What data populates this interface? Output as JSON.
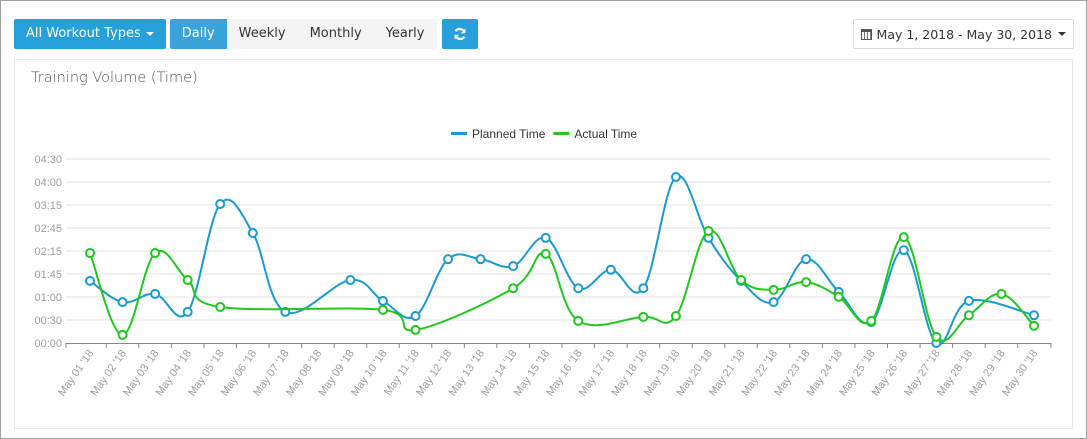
{
  "toolbar": {
    "workout_filter_label": "All Workout Types",
    "periods": [
      {
        "label": "Daily",
        "active": true
      },
      {
        "label": "Weekly",
        "active": false
      },
      {
        "label": "Monthly",
        "active": false
      },
      {
        "label": "Yearly",
        "active": false
      }
    ],
    "refresh_icon": "refresh-icon",
    "date_range_label": "May 1, 2018 - May 30, 2018",
    "date_range_icon": "calendar-icon"
  },
  "colors": {
    "primary_button": "#26a0da",
    "planned": "#1a9bcd",
    "actual": "#1ec81e",
    "grid": "#e0e0e0",
    "axis_text": "#9e9e9e"
  },
  "panel": {
    "title": "Training Volume (Time)"
  },
  "chart_data": {
    "type": "line",
    "title": "Training Volume (Time)",
    "xlabel": "",
    "ylabel": "",
    "ylim": [
      0,
      4.5
    ],
    "y_unit": "hours",
    "y_tick_labels": [
      "00:00",
      "00:30",
      "01:00",
      "01:45",
      "02:15",
      "02:45",
      "03:15",
      "04:00",
      "04:30"
    ],
    "y_tick_values": [
      0,
      0.5625,
      1.125,
      1.6875,
      2.25,
      2.8125,
      3.375,
      3.9375,
      4.5
    ],
    "grid": true,
    "legend_position": "top",
    "categories": [
      "May 01 '18",
      "May 02 '18",
      "May 03 '18",
      "May 04 '18",
      "May 05 '18",
      "May 06 '18",
      "May 07 '18",
      "May 08 '18",
      "May 09 '18",
      "May 10 '18",
      "May 11 '18",
      "May 12 '18",
      "May 13 '18",
      "May 14 '18",
      "May 15 '18",
      "May 16 '18",
      "May 17 '18",
      "May 18 '18",
      "May 19 '18",
      "May 20 '18",
      "May 21 '18",
      "May 22 '18",
      "May 23 '18",
      "May 24 '18",
      "May 25 '18",
      "May 26 '18",
      "May 27 '18",
      "May 28 '18",
      "May 29 '18",
      "May 30 '18"
    ],
    "series": [
      {
        "name": "Planned Time",
        "color": "#1a9bcd",
        "values": [
          1.52,
          1.0,
          1.2,
          0.76,
          3.4,
          2.69,
          0.76,
          null,
          1.54,
          1.03,
          0.66,
          2.05,
          2.05,
          1.88,
          2.57,
          1.34,
          1.79,
          1.34,
          4.06,
          2.57,
          1.52,
          1.0,
          2.05,
          1.25,
          0.51,
          2.27,
          0.0,
          1.03,
          null,
          0.68
        ]
      },
      {
        "name": "Actual Time",
        "color": "#1ec81e",
        "values": [
          2.2,
          0.2,
          2.2,
          1.54,
          0.88,
          null,
          null,
          null,
          null,
          0.81,
          0.32,
          null,
          null,
          1.34,
          2.18,
          0.54,
          null,
          0.64,
          0.66,
          2.74,
          1.54,
          1.3,
          1.49,
          1.13,
          0.54,
          2.59,
          0.15,
          0.68,
          1.2,
          0.42
        ]
      }
    ]
  }
}
